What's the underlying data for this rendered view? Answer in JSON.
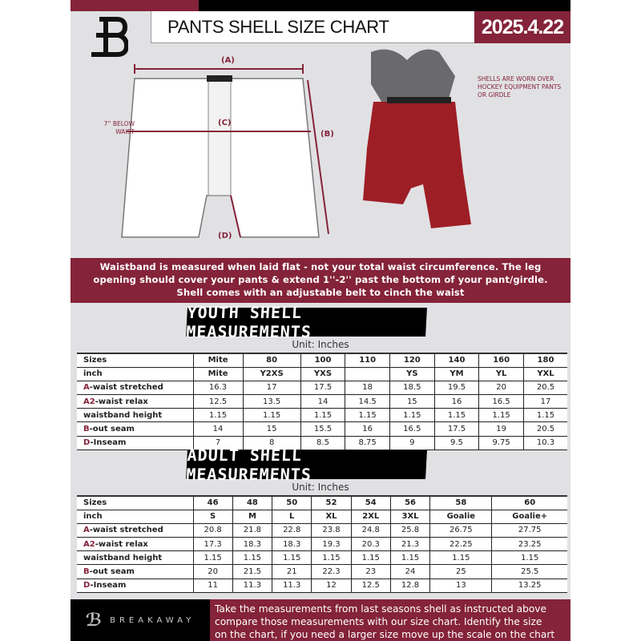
{
  "header": {
    "title": "PANTS SHELL SIZE CHART",
    "date": "2025.4.22",
    "logo_text": "B"
  },
  "diagram": {
    "label_a": "(A)",
    "label_b": "(B)",
    "label_c": "(C)",
    "label_d": "(D)",
    "below_waist": "7'' BELOW WAIST",
    "note": "SHELLS ARE WORN OVER HOCKEY EQUIPMENT PANTS OR GIRDLE"
  },
  "instructions": [
    "Waistband is measured when laid flat - not your total waist circumference. The leg",
    "opening should cover your pants & extend 1''-2'' past the bottom of your pant/girdle.",
    "Shell comes with an adjustable belt to cinch the waist"
  ],
  "youth": {
    "title": "YOUTH SHELL MEASUREMENTS",
    "unit": "Unit: Inches",
    "rows": [
      {
        "prefix": "",
        "label": "Sizes",
        "values": [
          "Mite",
          "80",
          "100",
          "110",
          "120",
          "140",
          "160",
          "180"
        ]
      },
      {
        "prefix": "",
        "label": "inch",
        "values": [
          "Mite",
          "Y2XS",
          "YXS",
          "",
          "YS",
          "YM",
          "YL",
          "YXL"
        ]
      },
      {
        "prefix": "A",
        "label": "-waist stretched",
        "values": [
          "16.3",
          "17",
          "17.5",
          "18",
          "18.5",
          "19.5",
          "20",
          "20.5"
        ]
      },
      {
        "prefix": "A2",
        "label": "-waist relax",
        "values": [
          "12.5",
          "13.5",
          "14",
          "14.5",
          "15",
          "16",
          "16.5",
          "17"
        ]
      },
      {
        "prefix": "",
        "label": "waistband height",
        "values": [
          "1.15",
          "1.15",
          "1.15",
          "1.15",
          "1.15",
          "1.15",
          "1.15",
          "1.15"
        ]
      },
      {
        "prefix": "B",
        "label": "-out seam",
        "values": [
          "14",
          "15",
          "15.5",
          "16",
          "16.5",
          "17.5",
          "19",
          "20.5"
        ]
      },
      {
        "prefix": "D",
        "label": "-Inseam",
        "values": [
          "7",
          "8",
          "8.5",
          "8.75",
          "9",
          "9.5",
          "9.75",
          "10.3"
        ]
      }
    ]
  },
  "adult": {
    "title": "ADULT SHELL MEASUREMENTS",
    "unit": "Unit: Inches",
    "rows": [
      {
        "prefix": "",
        "label": "Sizes",
        "values": [
          "46",
          "48",
          "50",
          "52",
          "54",
          "56",
          "58",
          "60"
        ]
      },
      {
        "prefix": "",
        "label": "inch",
        "values": [
          "S",
          "M",
          "L",
          "XL",
          "2XL",
          "3XL",
          "Goalie",
          "Goalie+"
        ]
      },
      {
        "prefix": "A",
        "label": "-waist stretched",
        "values": [
          "20.8",
          "21.8",
          "22.8",
          "23.8",
          "24.8",
          "25.8",
          "26.75",
          "27.75"
        ]
      },
      {
        "prefix": "A2",
        "label": "-waist relax",
        "values": [
          "17.3",
          "18.3",
          "18.3",
          "19.3",
          "20.3",
          "21.3",
          "22.25",
          "23.25"
        ]
      },
      {
        "prefix": "",
        "label": "waistband height",
        "values": [
          "1.15",
          "1.15",
          "1.15",
          "1.15",
          "1.15",
          "1.15",
          "1.15",
          "1.15"
        ]
      },
      {
        "prefix": "B",
        "label": "-out seam",
        "values": [
          "20",
          "21.5",
          "21",
          "22.3",
          "23",
          "24",
          "25",
          "25.5"
        ]
      },
      {
        "prefix": "D",
        "label": "-Inseam",
        "values": [
          "11",
          "11.3",
          "11.3",
          "12",
          "12.5",
          "12.8",
          "13",
          "13.25"
        ]
      }
    ]
  },
  "footer": {
    "brand": "BREAKAWAY",
    "text": [
      "Take the measurements from last seasons shell as instructed above",
      "compare those measurements  with our size chart. Identify the size",
      "on the chart, if you need a larger size move up the scale on the chart"
    ]
  },
  "colors": {
    "maroon": "#842339",
    "black": "#000000",
    "background": "#e1e1e4"
  }
}
